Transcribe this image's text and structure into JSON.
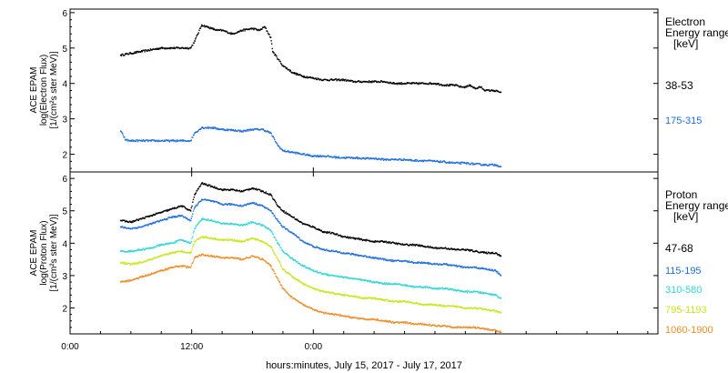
{
  "chart_data": [
    {
      "type": "scatter",
      "panel": "electron",
      "ylabel_lines": [
        "ACE EPAM",
        "log(Electron Flux)",
        "[1/(cm²s ster MeV)]"
      ],
      "ylim": [
        1.5,
        6.1
      ],
      "yticks": [
        2,
        3,
        4,
        5,
        6
      ],
      "legend_title": [
        "Electron",
        "Energy ranges",
        "[keV]"
      ],
      "series": [
        {
          "name": "38-53",
          "color": "#000000",
          "x": [
            5.0,
            6.0,
            7.0,
            8.0,
            9.0,
            10.0,
            11.0,
            11.9,
            12.3,
            13.0,
            13.5,
            14.0,
            14.5,
            15.0,
            15.5,
            16.0,
            17.0,
            18.0,
            18.7,
            19.2,
            19.8,
            20.0,
            21.0,
            22.0,
            23.0,
            24.0,
            25.0,
            26.0,
            27.0,
            28.0,
            29.0,
            30.0,
            31.0,
            32.0,
            33.0,
            34.0,
            35.0,
            36.0,
            37.0,
            38.0,
            38.6,
            39.0,
            39.5,
            40.0,
            40.5,
            41.0,
            41.8,
            42.5
          ],
          "y": [
            4.8,
            4.85,
            4.9,
            4.95,
            5.0,
            5.0,
            5.0,
            5.0,
            5.2,
            5.65,
            5.6,
            5.55,
            5.5,
            5.5,
            5.45,
            5.4,
            5.5,
            5.55,
            5.5,
            5.6,
            5.3,
            4.9,
            4.5,
            4.3,
            4.2,
            4.15,
            4.1,
            4.1,
            4.1,
            4.05,
            4.05,
            4.05,
            4.05,
            4.0,
            4.0,
            4.0,
            4.0,
            4.0,
            3.95,
            3.95,
            3.9,
            3.9,
            3.95,
            3.85,
            3.9,
            3.8,
            3.8,
            3.75
          ]
        },
        {
          "name": "175-315",
          "color": "#1f6fe0",
          "x": [
            5.0,
            5.5,
            6.0,
            7.0,
            8.0,
            9.0,
            10.0,
            11.0,
            11.9,
            12.3,
            13.0,
            14.0,
            15.0,
            16.0,
            17.0,
            18.0,
            19.0,
            19.8,
            20.5,
            21.0,
            22.0,
            23.0,
            24.0,
            25.0,
            26.0,
            27.0,
            28.0,
            29.0,
            30.0,
            31.0,
            32.0,
            33.0,
            34.0,
            35.0,
            36.0,
            37.0,
            38.0,
            39.0,
            40.0,
            41.0,
            42.0,
            42.5
          ],
          "y": [
            2.65,
            2.4,
            2.38,
            2.38,
            2.38,
            2.38,
            2.38,
            2.38,
            2.38,
            2.6,
            2.75,
            2.75,
            2.7,
            2.68,
            2.65,
            2.7,
            2.7,
            2.6,
            2.25,
            2.1,
            2.05,
            2.0,
            1.95,
            1.95,
            1.92,
            1.9,
            1.9,
            1.88,
            1.88,
            1.85,
            1.85,
            1.85,
            1.82,
            1.82,
            1.8,
            1.78,
            1.75,
            1.75,
            1.72,
            1.7,
            1.7,
            1.65
          ]
        }
      ]
    },
    {
      "type": "scatter",
      "panel": "proton",
      "ylabel_lines": [
        "ACE EPAM",
        "log(Proton Flux)",
        "[1/(cm²s ster MeV)]"
      ],
      "ylim": [
        1.2,
        6.2
      ],
      "yticks": [
        2,
        3,
        4,
        5,
        6
      ],
      "legend_title": [
        "Proton",
        "Energy ranges",
        "[keV]"
      ],
      "xlabel": "hours:minutes, July 15, 2017 - July 17, 2017",
      "xlim": [
        0,
        58
      ],
      "xticks": [
        0,
        12,
        24
      ],
      "xtick_labels": [
        "0:00",
        "12:00",
        "0:00"
      ],
      "series": [
        {
          "name": "47-68",
          "color": "#000000",
          "x": [
            5.0,
            6.0,
            7.0,
            8.0,
            9.0,
            10.0,
            11.0,
            11.9,
            12.3,
            13.0,
            14.0,
            15.0,
            16.0,
            17.0,
            18.0,
            19.0,
            19.8,
            20.5,
            21.0,
            22.0,
            23.0,
            24.0,
            25.0,
            26.0,
            27.0,
            28.0,
            29.0,
            30.0,
            31.0,
            32.0,
            33.0,
            34.0,
            35.0,
            36.0,
            37.0,
            38.0,
            39.0,
            40.0,
            41.0,
            42.0,
            42.5
          ],
          "y": [
            4.7,
            4.65,
            4.75,
            4.85,
            4.95,
            5.05,
            5.15,
            5.0,
            5.5,
            5.85,
            5.75,
            5.65,
            5.65,
            5.6,
            5.7,
            5.6,
            5.5,
            5.15,
            5.0,
            4.8,
            4.6,
            4.5,
            4.35,
            4.3,
            4.2,
            4.15,
            4.1,
            4.05,
            4.05,
            4.0,
            3.95,
            3.95,
            3.9,
            3.85,
            3.85,
            3.8,
            3.8,
            3.75,
            3.7,
            3.7,
            3.6
          ]
        },
        {
          "name": "115-195",
          "color": "#1f6fe0",
          "x": [
            5.0,
            6.0,
            7.0,
            8.0,
            9.0,
            10.0,
            11.0,
            11.9,
            12.3,
            13.0,
            14.0,
            15.0,
            16.0,
            17.0,
            18.0,
            19.0,
            19.8,
            20.5,
            21.0,
            22.0,
            23.0,
            24.0,
            25.0,
            26.0,
            27.0,
            28.0,
            29.0,
            30.0,
            31.0,
            32.0,
            33.0,
            34.0,
            35.0,
            36.0,
            37.0,
            38.0,
            39.0,
            40.0,
            41.0,
            42.0,
            42.5
          ],
          "y": [
            4.5,
            4.45,
            4.5,
            4.6,
            4.7,
            4.8,
            4.85,
            4.7,
            5.1,
            5.35,
            5.3,
            5.2,
            5.2,
            5.15,
            5.25,
            5.15,
            5.0,
            4.7,
            4.5,
            4.3,
            4.05,
            3.9,
            3.8,
            3.75,
            3.7,
            3.65,
            3.6,
            3.55,
            3.5,
            3.45,
            3.45,
            3.4,
            3.4,
            3.35,
            3.35,
            3.3,
            3.25,
            3.25,
            3.2,
            3.15,
            3.0
          ]
        },
        {
          "name": "310-580",
          "color": "#33d6d6",
          "x": [
            5.0,
            6.0,
            7.0,
            8.0,
            9.0,
            10.0,
            11.0,
            11.9,
            12.3,
            13.0,
            14.0,
            15.0,
            16.0,
            17.0,
            18.0,
            19.0,
            19.8,
            20.5,
            21.0,
            22.0,
            23.0,
            24.0,
            25.0,
            26.0,
            27.0,
            28.0,
            29.0,
            30.0,
            31.0,
            32.0,
            33.0,
            34.0,
            35.0,
            36.0,
            37.0,
            38.0,
            39.0,
            40.0,
            41.0,
            42.0,
            42.5
          ],
          "y": [
            3.75,
            3.75,
            3.8,
            3.85,
            3.95,
            4.0,
            4.1,
            4.0,
            4.45,
            4.75,
            4.7,
            4.6,
            4.6,
            4.55,
            4.65,
            4.55,
            4.4,
            4.0,
            3.75,
            3.5,
            3.3,
            3.15,
            3.05,
            3.0,
            2.95,
            2.9,
            2.85,
            2.8,
            2.75,
            2.75,
            2.7,
            2.65,
            2.65,
            2.6,
            2.6,
            2.55,
            2.5,
            2.5,
            2.45,
            2.4,
            2.3
          ]
        },
        {
          "name": "795-1193",
          "color": "#c8e61e",
          "x": [
            5.0,
            6.0,
            7.0,
            8.0,
            9.0,
            10.0,
            11.0,
            11.9,
            12.3,
            13.0,
            14.0,
            15.0,
            16.0,
            17.0,
            18.0,
            19.0,
            19.8,
            20.5,
            21.0,
            22.0,
            23.0,
            24.0,
            25.0,
            26.0,
            27.0,
            28.0,
            29.0,
            30.0,
            31.0,
            32.0,
            33.0,
            34.0,
            35.0,
            36.0,
            37.0,
            38.0,
            39.0,
            40.0,
            41.0,
            42.0,
            42.5
          ],
          "y": [
            3.4,
            3.35,
            3.4,
            3.5,
            3.6,
            3.7,
            3.75,
            3.7,
            4.05,
            4.2,
            4.15,
            4.1,
            4.1,
            4.05,
            4.15,
            4.05,
            3.9,
            3.5,
            3.2,
            2.95,
            2.75,
            2.6,
            2.5,
            2.45,
            2.4,
            2.35,
            2.3,
            2.3,
            2.25,
            2.2,
            2.2,
            2.15,
            2.1,
            2.1,
            2.05,
            2.05,
            2.0,
            2.0,
            1.95,
            1.9,
            1.85
          ]
        },
        {
          "name": "1060-1900",
          "color": "#f08c28",
          "x": [
            5.0,
            6.0,
            7.0,
            8.0,
            9.0,
            10.0,
            11.0,
            11.9,
            12.3,
            13.0,
            14.0,
            15.0,
            16.0,
            17.0,
            18.0,
            19.0,
            19.8,
            20.5,
            21.0,
            22.0,
            23.0,
            24.0,
            25.0,
            26.0,
            27.0,
            28.0,
            29.0,
            30.0,
            31.0,
            32.0,
            33.0,
            34.0,
            35.0,
            36.0,
            37.0,
            38.0,
            39.0,
            40.0,
            41.0,
            42.0,
            42.5
          ],
          "y": [
            2.8,
            2.85,
            2.95,
            3.05,
            3.15,
            3.25,
            3.3,
            3.25,
            3.55,
            3.65,
            3.6,
            3.55,
            3.55,
            3.5,
            3.6,
            3.5,
            3.3,
            2.9,
            2.6,
            2.3,
            2.1,
            1.95,
            1.85,
            1.8,
            1.75,
            1.7,
            1.65,
            1.65,
            1.6,
            1.55,
            1.55,
            1.5,
            1.5,
            1.45,
            1.45,
            1.4,
            1.4,
            1.4,
            1.35,
            1.3,
            1.25
          ]
        }
      ]
    }
  ]
}
